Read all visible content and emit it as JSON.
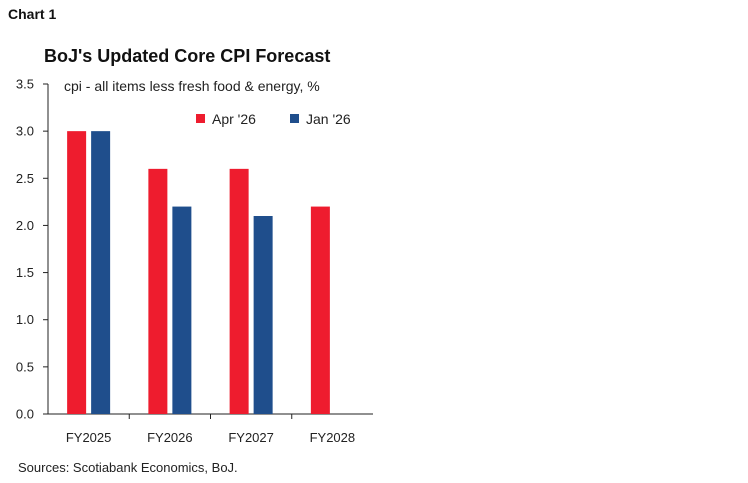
{
  "header": {
    "label": "Chart 1"
  },
  "source": "Sources: Scotiabank Economics, BoJ.",
  "colors": {
    "apr": "#ee1c2e",
    "jan": "#1f4e8c",
    "axis": "#222222"
  },
  "chart_data": {
    "type": "bar",
    "title": "BoJ's Updated Core CPI Forecast",
    "subtitle": "cpi - all items less fresh food & energy, %",
    "xlabel": "",
    "ylabel": "",
    "categories": [
      "FY2025",
      "FY2026",
      "FY2027",
      "FY2028"
    ],
    "series": [
      {
        "name": "Apr '26",
        "values": [
          3.0,
          2.6,
          2.6,
          2.2
        ]
      },
      {
        "name": "Jan '26",
        "values": [
          3.0,
          2.2,
          2.1,
          null
        ]
      }
    ],
    "ylim": [
      0,
      3.5
    ],
    "yticks": [
      "0.0",
      "0.5",
      "1.0",
      "1.5",
      "2.0",
      "2.5",
      "3.0",
      "3.5"
    ],
    "grid": false,
    "legend_position": "top-right"
  }
}
